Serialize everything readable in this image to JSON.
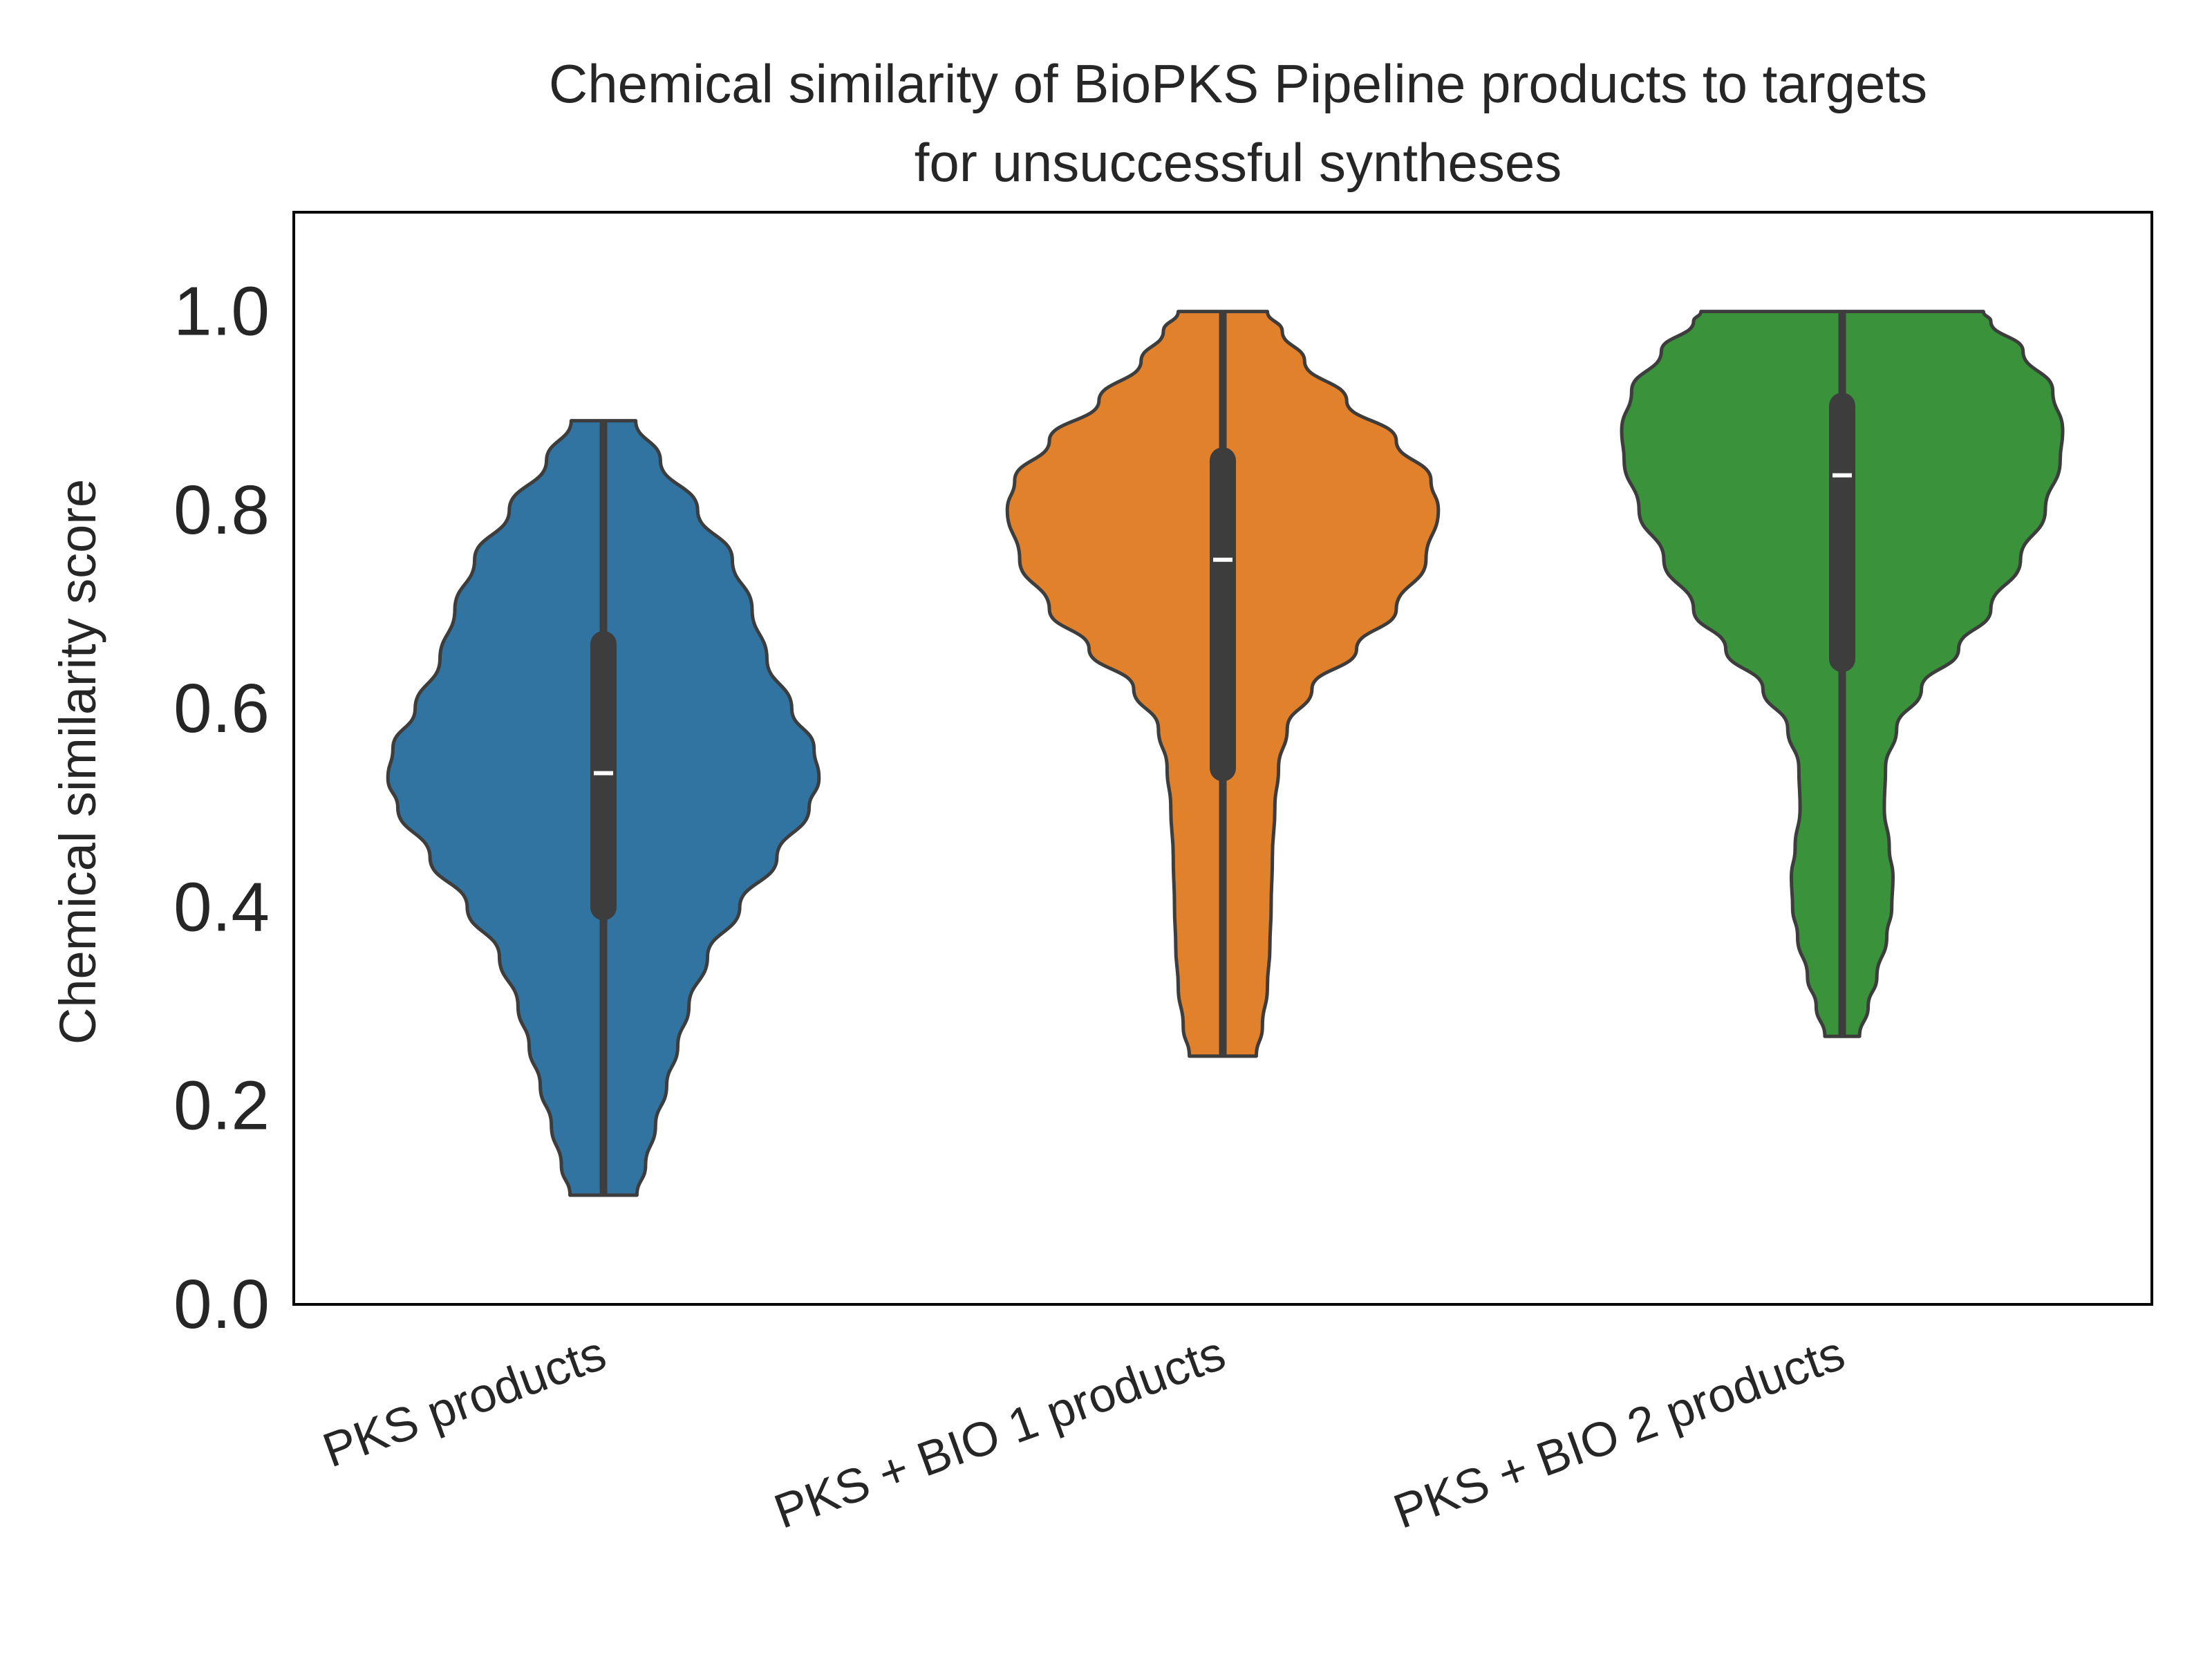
{
  "chart_data": {
    "type": "violin",
    "title": [
      "Chemical similarity of BioPKS Pipeline products to targets",
      "for unsuccessful syntheses"
    ],
    "xlabel": "",
    "ylabel": "Chemical similarity score",
    "ylim": [
      0.0,
      1.1
    ],
    "yticks": [
      0.0,
      0.2,
      0.4,
      0.6,
      0.8,
      1.0
    ],
    "ytick_labels": [
      "0.0",
      "0.2",
      "0.4",
      "0.6",
      "0.8",
      "1.0"
    ],
    "categories": [
      "PKS products",
      "PKS + BIO 1 products",
      "PKS + BIO 2 products"
    ],
    "grid": false,
    "series": [
      {
        "category": "PKS products",
        "color": "#3274a1",
        "min": 0.11,
        "max": 0.89,
        "q1": 0.4,
        "median": 0.535,
        "q3": 0.665,
        "density": [
          [
            0.11,
            0.135
          ],
          [
            0.14,
            0.17
          ],
          [
            0.18,
            0.21
          ],
          [
            0.22,
            0.255
          ],
          [
            0.26,
            0.3
          ],
          [
            0.3,
            0.345
          ],
          [
            0.35,
            0.42
          ],
          [
            0.4,
            0.55
          ],
          [
            0.45,
            0.7
          ],
          [
            0.5,
            0.83
          ],
          [
            0.53,
            0.87
          ],
          [
            0.56,
            0.85
          ],
          [
            0.6,
            0.76
          ],
          [
            0.65,
            0.66
          ],
          [
            0.7,
            0.6
          ],
          [
            0.75,
            0.52
          ],
          [
            0.8,
            0.38
          ],
          [
            0.85,
            0.23
          ],
          [
            0.89,
            0.13
          ]
        ]
      },
      {
        "category": "PKS + BIO 1 products",
        "color": "#e1812c",
        "min": 0.25,
        "max": 1.0,
        "q1": 0.54,
        "median": 0.75,
        "q3": 0.85,
        "density": [
          [
            0.25,
            0.135
          ],
          [
            0.28,
            0.16
          ],
          [
            0.32,
            0.18
          ],
          [
            0.36,
            0.19
          ],
          [
            0.4,
            0.195
          ],
          [
            0.45,
            0.2
          ],
          [
            0.5,
            0.21
          ],
          [
            0.54,
            0.225
          ],
          [
            0.58,
            0.26
          ],
          [
            0.62,
            0.36
          ],
          [
            0.66,
            0.54
          ],
          [
            0.7,
            0.7
          ],
          [
            0.75,
            0.82
          ],
          [
            0.8,
            0.87
          ],
          [
            0.83,
            0.84
          ],
          [
            0.87,
            0.7
          ],
          [
            0.91,
            0.5
          ],
          [
            0.95,
            0.33
          ],
          [
            0.98,
            0.24
          ],
          [
            1.0,
            0.18
          ]
        ]
      },
      {
        "category": "PKS + BIO 2 products",
        "color": "#3a923a",
        "min": 0.27,
        "max": 1.0,
        "q1": 0.65,
        "median": 0.835,
        "q3": 0.905,
        "density": [
          [
            0.27,
            0.07
          ],
          [
            0.3,
            0.105
          ],
          [
            0.33,
            0.14
          ],
          [
            0.37,
            0.18
          ],
          [
            0.4,
            0.2
          ],
          [
            0.43,
            0.205
          ],
          [
            0.46,
            0.19
          ],
          [
            0.5,
            0.17
          ],
          [
            0.54,
            0.175
          ],
          [
            0.58,
            0.22
          ],
          [
            0.62,
            0.32
          ],
          [
            0.66,
            0.47
          ],
          [
            0.7,
            0.6
          ],
          [
            0.75,
            0.72
          ],
          [
            0.8,
            0.82
          ],
          [
            0.85,
            0.88
          ],
          [
            0.88,
            0.89
          ],
          [
            0.92,
            0.85
          ],
          [
            0.96,
            0.73
          ],
          [
            0.99,
            0.6
          ],
          [
            1.0,
            0.57
          ]
        ]
      }
    ]
  }
}
